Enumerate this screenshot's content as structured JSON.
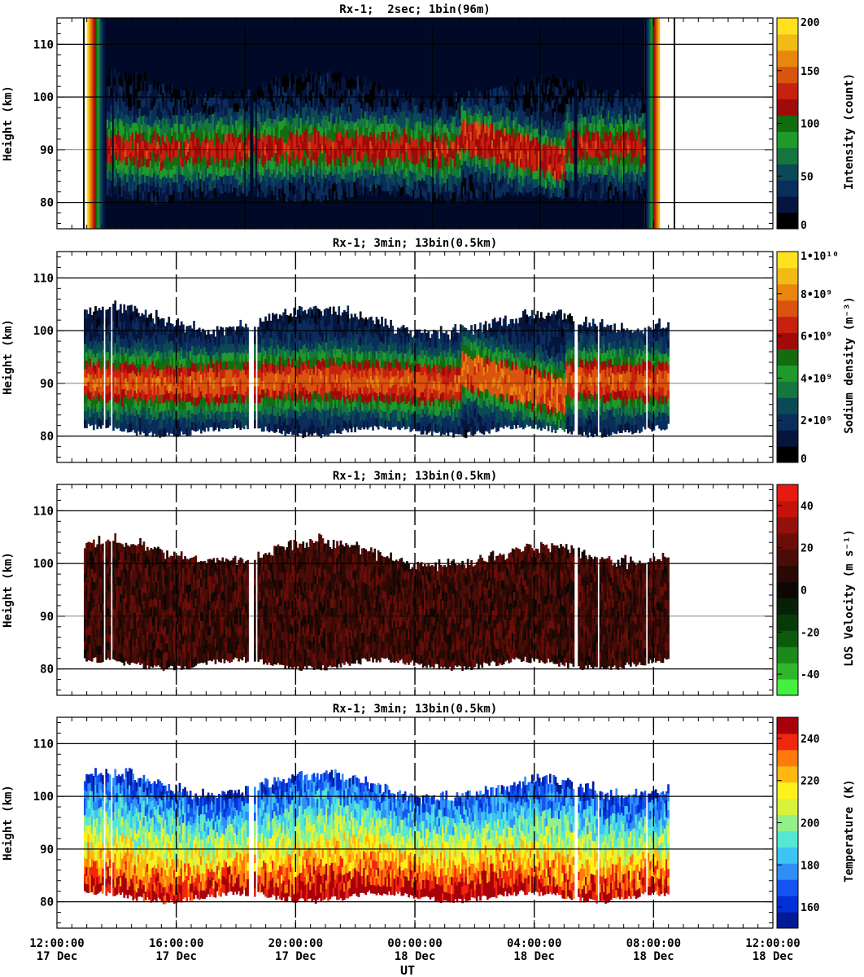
{
  "figure": {
    "xlabel": "UT",
    "ylabel": "Height (km)",
    "x_ticks": [
      {
        "time": "12:00:00",
        "date": "17 Dec"
      },
      {
        "time": "16:00:00",
        "date": "17 Dec"
      },
      {
        "time": "20:00:00",
        "date": "17 Dec"
      },
      {
        "time": "00:00:00",
        "date": "18 Dec"
      },
      {
        "time": "04:00:00",
        "date": "18 Dec"
      },
      {
        "time": "08:00:00",
        "date": "18 Dec"
      },
      {
        "time": "12:00:00",
        "date": "18 Dec"
      }
    ],
    "y_ticks": [
      "80",
      "90",
      "100",
      "110"
    ]
  },
  "chart_data": [
    {
      "type": "heatmap",
      "title": "Rx-1;  2sec; 1bin(96m)",
      "ylabel": "Height (km)",
      "xlim_hours_ut": [
        12,
        36
      ],
      "ylim": [
        75,
        115
      ],
      "colorbar": {
        "label": "Intensity (count)",
        "range": [
          0,
          200
        ],
        "ticks": [
          "0",
          "50",
          "100",
          "150",
          "200"
        ],
        "colors": [
          "#000000",
          "#06153d",
          "#0b2d5c",
          "#0b4a55",
          "#14763e",
          "#1f9a2a",
          "#136c10",
          "#a10a0a",
          "#c8210f",
          "#d8540f",
          "#e8860e",
          "#f2ba14",
          "#ffe11e"
        ]
      },
      "data_coverage_hours_ut": [
        13.0,
        32.2
      ],
      "layer_peak_height_km": 89,
      "layer_range_km": [
        82,
        97
      ]
    },
    {
      "type": "heatmap",
      "title": "Rx-1; 3min; 13bin(0.5km)",
      "ylabel": "Height (km)",
      "xlim_hours_ut": [
        12,
        36
      ],
      "ylim": [
        75,
        115
      ],
      "colorbar": {
        "label": "Sodium density (m⁻³)",
        "range": [
          0,
          10000000000.0
        ],
        "ticks": [
          "0",
          "2•10⁹",
          "4•10⁹",
          "6•10⁹",
          "8•10⁹",
          "1•10¹⁰"
        ],
        "colors": [
          "#000000",
          "#06153d",
          "#0b2d5c",
          "#0b4a55",
          "#14763e",
          "#1f9a2a",
          "#136c10",
          "#a10a0a",
          "#c8210f",
          "#d8540f",
          "#e8860e",
          "#f2ba14",
          "#ffe11e"
        ]
      },
      "data_coverage_hours_ut": [
        12.9,
        32.5
      ],
      "layer_peak_height_km": 89,
      "layer_range_km": [
        80,
        103
      ]
    },
    {
      "type": "heatmap",
      "title": "Rx-1; 3min; 13bin(0.5km)",
      "ylabel": "Height (km)",
      "xlim_hours_ut": [
        12,
        36
      ],
      "ylim": [
        75,
        115
      ],
      "colorbar": {
        "label": "LOS Velocity (m s⁻¹)",
        "range": [
          -50,
          50
        ],
        "ticks": [
          "-40",
          "-20",
          "0",
          "20",
          "40"
        ],
        "colors": [
          "#45ef3f",
          "#2fb62a",
          "#1a8a1a",
          "#0d5a0d",
          "#083a08",
          "#062206",
          "#0e0703",
          "#2a0905",
          "#4a0c07",
          "#6d0d08",
          "#94100b",
          "#c4120d",
          "#e81a10"
        ]
      },
      "data_coverage_hours_ut": [
        12.9,
        32.5
      ],
      "layer_range_km": [
        80,
        103
      ]
    },
    {
      "type": "heatmap",
      "title": "Rx-1; 3min; 13bin(0.5km)",
      "ylabel": "Height (km)",
      "xlim_hours_ut": [
        12,
        36
      ],
      "ylim": [
        75,
        115
      ],
      "colorbar": {
        "label": "Temperature (K)",
        "range": [
          150,
          250
        ],
        "ticks": [
          "160",
          "180",
          "200",
          "220",
          "240"
        ],
        "colors": [
          "#001a96",
          "#0030d8",
          "#1455f2",
          "#2f8ff7",
          "#3cc4f5",
          "#54e8d4",
          "#92f088",
          "#d8f23c",
          "#fff21c",
          "#ffb80f",
          "#ff7a0a",
          "#f0260f",
          "#a8000a"
        ]
      },
      "data_coverage_hours_ut": [
        12.9,
        32.5
      ],
      "layer_range_km": [
        80,
        104
      ]
    }
  ]
}
